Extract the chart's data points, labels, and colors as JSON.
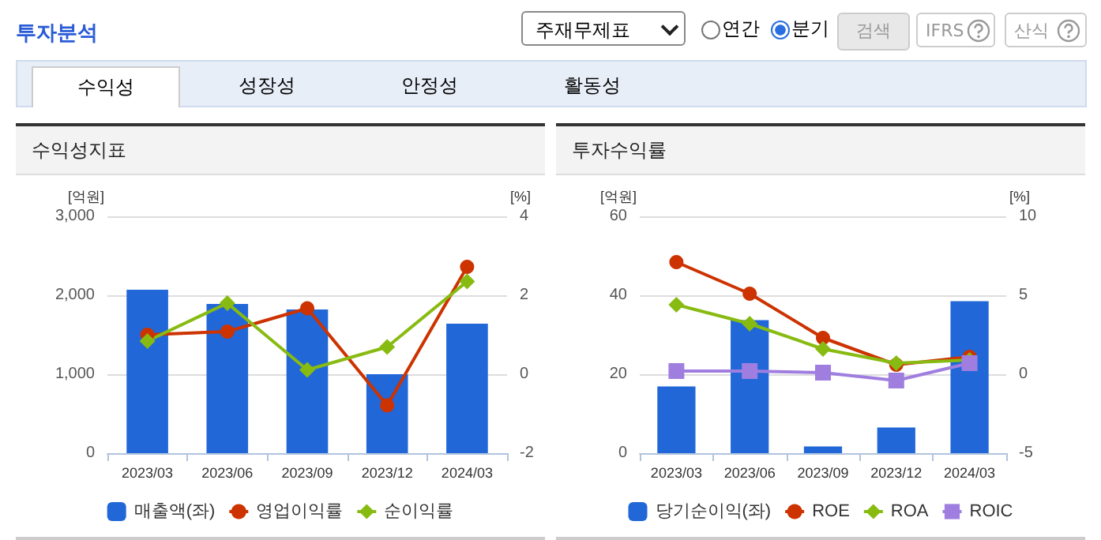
{
  "chart_data": [
    {
      "type": "bar",
      "title": "수익성지표",
      "categories": [
        "2023/03",
        "2023/06",
        "2023/09",
        "2023/12",
        "2024/03"
      ],
      "ylabel": "[억원]",
      "y2label": "[%]",
      "ylim": [
        0,
        3000
      ],
      "yticks": [
        0,
        {
          "value": 1000,
          "label": "1,000"
        },
        {
          "value": 2000,
          "label": "2,000"
        },
        {
          "value": 3000,
          "label": "3,000"
        }
      ],
      "y2lim": [
        -2,
        4
      ],
      "y2ticks": [
        -2,
        0,
        2,
        4
      ],
      "grid": "y",
      "legend": "bottom",
      "annotations": [
        "투자분석",
        "주재무제표",
        "연간",
        "분기",
        "검색",
        "IFRS",
        "산식",
        "수익성",
        "성장성",
        "안정성",
        "활동성"
      ],
      "series": [
        {
          "name": "매출액(좌)",
          "color": "#2167d8",
          "values": [
            2070,
            1890,
            1820,
            1000,
            1640
          ]
        },
        {
          "name": "영업이익률",
          "type": "line",
          "axis": "y2",
          "marker": "circle",
          "color": "#cc3300",
          "values": [
            1.0,
            1.08,
            1.67,
            -0.79,
            2.72
          ]
        },
        {
          "name": "순이익률",
          "type": "line",
          "axis": "y2",
          "marker": "diamond",
          "color": "#88bb11",
          "values": [
            0.84,
            1.8,
            0.11,
            0.69,
            2.35
          ]
        }
      ]
    },
    {
      "type": "bar",
      "title": "투자수익률",
      "categories": [
        "2023/03",
        "2023/06",
        "2023/09",
        "2023/12",
        "2024/03"
      ],
      "ylabel": "[억원]",
      "y2label": "[%]",
      "ylim": [
        0,
        60
      ],
      "yticks": [
        0,
        20,
        40,
        60
      ],
      "y2lim": [
        -5,
        10
      ],
      "y2ticks": [
        -5,
        0,
        5,
        10
      ],
      "grid": "y",
      "legend": "bottom",
      "series": [
        {
          "name": "당기순이익(좌)",
          "color": "#2167d8",
          "values": [
            16.9,
            33.7,
            1.7,
            6.5,
            38.5
          ]
        },
        {
          "name": "ROE",
          "type": "line",
          "axis": "y2",
          "marker": "circle",
          "color": "#cc3300",
          "values": [
            7.1,
            5.1,
            2.3,
            0.6,
            1.1
          ]
        },
        {
          "name": "ROA",
          "type": "line",
          "axis": "y2",
          "marker": "diamond",
          "color": "#88bb11",
          "values": [
            4.4,
            3.2,
            1.6,
            0.7,
            0.9
          ]
        },
        {
          "name": "ROIC",
          "type": "line",
          "axis": "y2",
          "marker": "square",
          "color": "#a07ee0",
          "values": [
            0.2,
            0.2,
            0.1,
            -0.4,
            0.7
          ]
        }
      ]
    }
  ]
}
